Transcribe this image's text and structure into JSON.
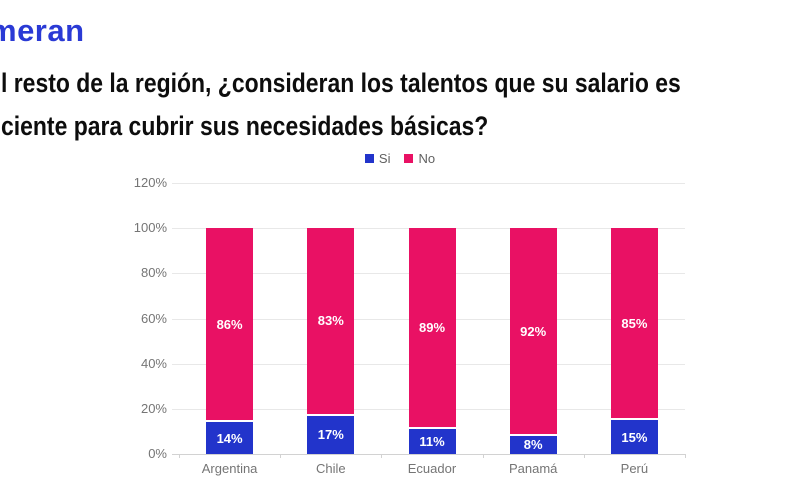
{
  "logo": {
    "text": "meran",
    "color": "#2a3ad5"
  },
  "title": {
    "line1": "l resto de la región, ¿consideran los talentos que su salario es",
    "line2": "ciente para cubrir sus necesidades básicas?"
  },
  "chart_data": {
    "type": "bar",
    "stacked": true,
    "title": "",
    "xlabel": "",
    "ylabel": "",
    "categories": [
      "Argentina",
      "Chile",
      "Ecuador",
      "Panamá",
      "Perú"
    ],
    "series": [
      {
        "name": "Si",
        "color": "#2234cb",
        "values": [
          14,
          17,
          11,
          8,
          15
        ]
      },
      {
        "name": "No",
        "color": "#e91164",
        "values": [
          86,
          83,
          89,
          92,
          85
        ]
      }
    ],
    "data_label_suffix": "%",
    "ylim": [
      0,
      120
    ],
    "yticks": [
      0,
      20,
      40,
      60,
      80,
      100,
      120
    ],
    "ytick_suffix": "%",
    "grid": true,
    "legend_position": "top",
    "colors": {
      "grid": "#e8e8e8",
      "axis_line": "#d2d2d2",
      "tick_label": "#757575",
      "data_label": "#ffffff"
    }
  }
}
